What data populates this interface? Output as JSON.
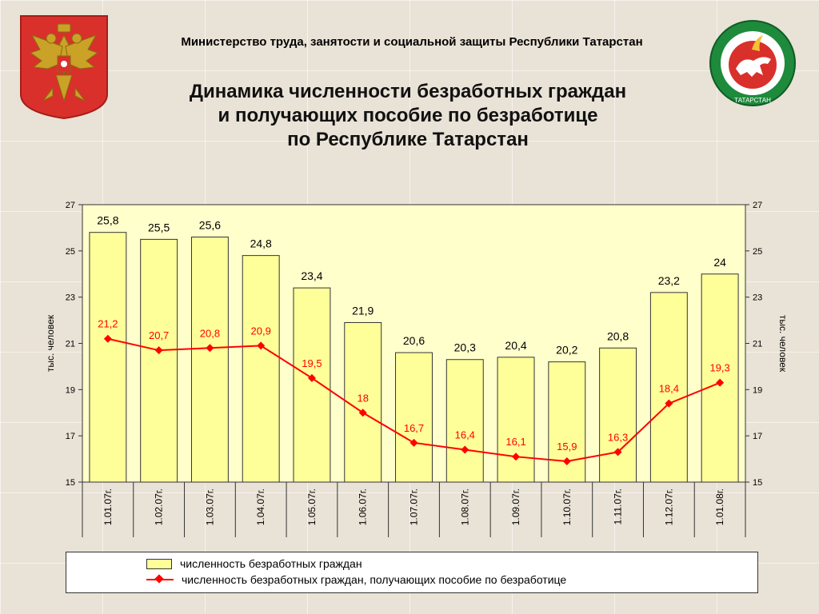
{
  "header": {
    "ministry": "Министерство  труда,  занятости и социальной защиты Республики Татарстан"
  },
  "title_lines": [
    "Динамика численности безработных граждан",
    "и получающих пособие по безработице",
    "по Республике Татарстан"
  ],
  "emblems": {
    "left": "russia-coat-of-arms-icon",
    "right": "tatarstan-coat-of-arms-icon",
    "right_text": "ТАТАРСТАН"
  },
  "colors": {
    "bar_fill": "#ffff99",
    "plot_bg": "#ffffcc",
    "line": "#ff0000",
    "bar_label": "#000000",
    "line_label": "#ff0000"
  },
  "chart_data": {
    "type": "bar",
    "categories": [
      "1.01.07г.",
      "1.02.07г.",
      "1.03.07г.",
      "1.04.07г.",
      "1.05.07г.",
      "1.06.07г.",
      "1.07.07г.",
      "1.08.07г.",
      "1.09.07г.",
      "1.10.07г.",
      "1.11.07г.",
      "1.12.07г.",
      "1.01.08г."
    ],
    "series": [
      {
        "name": "численность безработных граждан",
        "type": "bar",
        "values": [
          25.8,
          25.5,
          25.6,
          24.8,
          23.4,
          21.9,
          20.6,
          20.3,
          20.4,
          20.2,
          20.8,
          23.2,
          24
        ],
        "labels": [
          "25,8",
          "25,5",
          "25,6",
          "24,8",
          "23,4",
          "21,9",
          "20,6",
          "20,3",
          "20,4",
          "20,2",
          "20,8",
          "23,2",
          "24"
        ]
      },
      {
        "name": "численность безработных граждан, получающих пособие по безработице",
        "type": "line",
        "values": [
          21.2,
          20.7,
          20.8,
          20.9,
          19.5,
          18,
          16.7,
          16.4,
          16.1,
          15.9,
          16.3,
          18.4,
          19.3
        ],
        "labels": [
          "21,2",
          "20,7",
          "20,8",
          "20,9",
          "19,5",
          "18",
          "16,7",
          "16,4",
          "16,1",
          "15,9",
          "16,3",
          "18,4",
          "19,3"
        ]
      }
    ],
    "ylabel": "тыс. человек",
    "ylabel_right": "тыс. человек",
    "ylim": [
      15,
      27
    ],
    "yticks": [
      15,
      17,
      19,
      21,
      23,
      25,
      27
    ],
    "legend_position": "bottom"
  }
}
